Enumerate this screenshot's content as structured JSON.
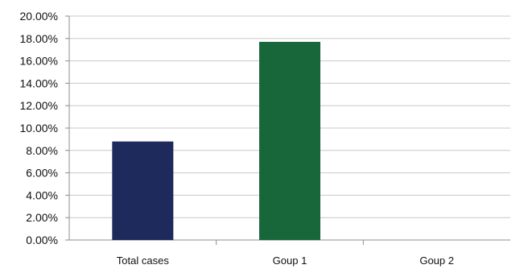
{
  "chart_data": {
    "type": "bar",
    "categories": [
      "Total cases",
      "Goup 1",
      "Goup 2"
    ],
    "values": [
      8.8,
      17.7,
      0
    ],
    "value_unit": "%",
    "ylim": [
      0,
      20
    ],
    "y_ticks": [
      "0.00%",
      "2.00%",
      "4.00%",
      "6.00%",
      "8.00%",
      "10.00%",
      "12.00%",
      "14.00%",
      "16.00%",
      "18.00%",
      "20.00%"
    ],
    "y_tick_values": [
      0,
      2,
      4,
      6,
      8,
      10,
      12,
      14,
      16,
      18,
      20
    ],
    "title": "",
    "xlabel": "",
    "ylabel": "",
    "grid": true,
    "legend": "none",
    "bar_colors": [
      "#1f2a5c",
      "#17673a",
      "#8fa3c8"
    ]
  }
}
